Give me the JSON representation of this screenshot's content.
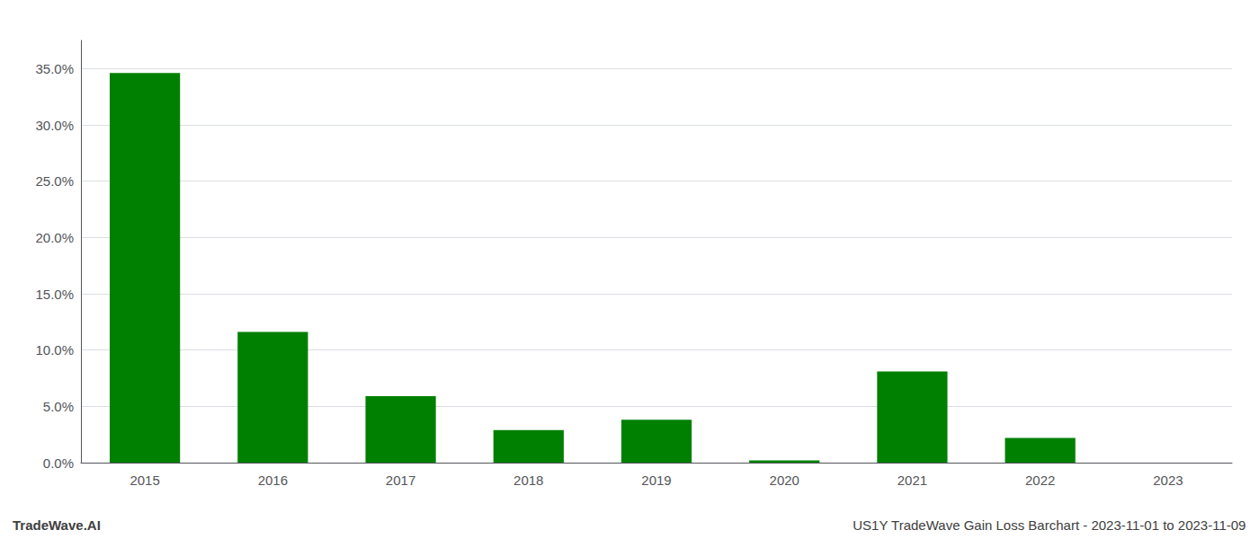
{
  "chart_data": {
    "type": "bar",
    "categories": [
      "2015",
      "2016",
      "2017",
      "2018",
      "2019",
      "2020",
      "2021",
      "2022",
      "2023"
    ],
    "values": [
      0.346,
      0.116,
      0.059,
      0.029,
      0.038,
      0.002,
      0.081,
      0.022,
      0.0
    ],
    "color": "#008000",
    "ylim": [
      0,
      0.375
    ],
    "yticks": [
      {
        "value": 0.0,
        "label": "0.0%"
      },
      {
        "value": 0.05,
        "label": "5.0%"
      },
      {
        "value": 0.1,
        "label": "10.0%"
      },
      {
        "value": 0.15,
        "label": "15.0%"
      },
      {
        "value": 0.2,
        "label": "20.0%"
      },
      {
        "value": 0.25,
        "label": "25.0%"
      },
      {
        "value": 0.3,
        "label": "30.0%"
      },
      {
        "value": 0.35,
        "label": "35.0%"
      }
    ],
    "grid": true,
    "annotations": [
      "TradeWave.AI",
      "US1Y TradeWave Gain Loss Barchart - 2023-11-01 to 2023-11-09"
    ]
  }
}
